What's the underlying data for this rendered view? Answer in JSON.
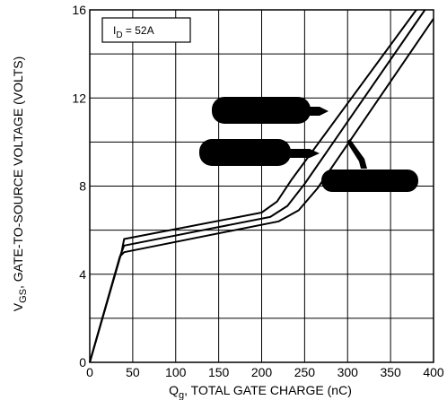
{
  "chart_data": {
    "type": "line",
    "xlabel_main": "Q",
    "xlabel_sub": "g",
    "xlabel_rest": ", TOTAL GATE CHARGE (nC)",
    "ylabel_main": "V",
    "ylabel_sub": "GS",
    "ylabel_rest": ", GATE-TO-SOURCE VOLTAGE (VOLTS)",
    "xlim": [
      0,
      400
    ],
    "ylim": [
      0,
      16
    ],
    "x_ticks": [
      0,
      50,
      100,
      150,
      200,
      250,
      300,
      350,
      400
    ],
    "y_ticks": [
      0,
      4,
      8,
      12,
      16
    ],
    "x_tick_labels": [
      "0",
      "50",
      "100",
      "150",
      "200",
      "250",
      "300",
      "350",
      "400"
    ],
    "y_tick_labels": [
      "0",
      "4",
      "8",
      "12",
      "16"
    ],
    "grid": true,
    "annotation_main": "I",
    "annotation_sub": "D",
    "annotation_rest": " = 52A",
    "series": [
      {
        "x": [
          0,
          37,
          40,
          200,
          218,
          235,
          380
        ],
        "y": [
          0,
          5.0,
          5.6,
          6.8,
          7.3,
          8.3,
          16.0
        ]
      },
      {
        "x": [
          0,
          36,
          40,
          210,
          230,
          250,
          390
        ],
        "y": [
          0,
          4.9,
          5.3,
          6.6,
          7.1,
          8.1,
          16.0
        ]
      },
      {
        "x": [
          0,
          35,
          40,
          220,
          243,
          265,
          400
        ],
        "y": [
          0,
          4.8,
          5.0,
          6.4,
          6.9,
          7.9,
          15.6
        ]
      }
    ]
  }
}
